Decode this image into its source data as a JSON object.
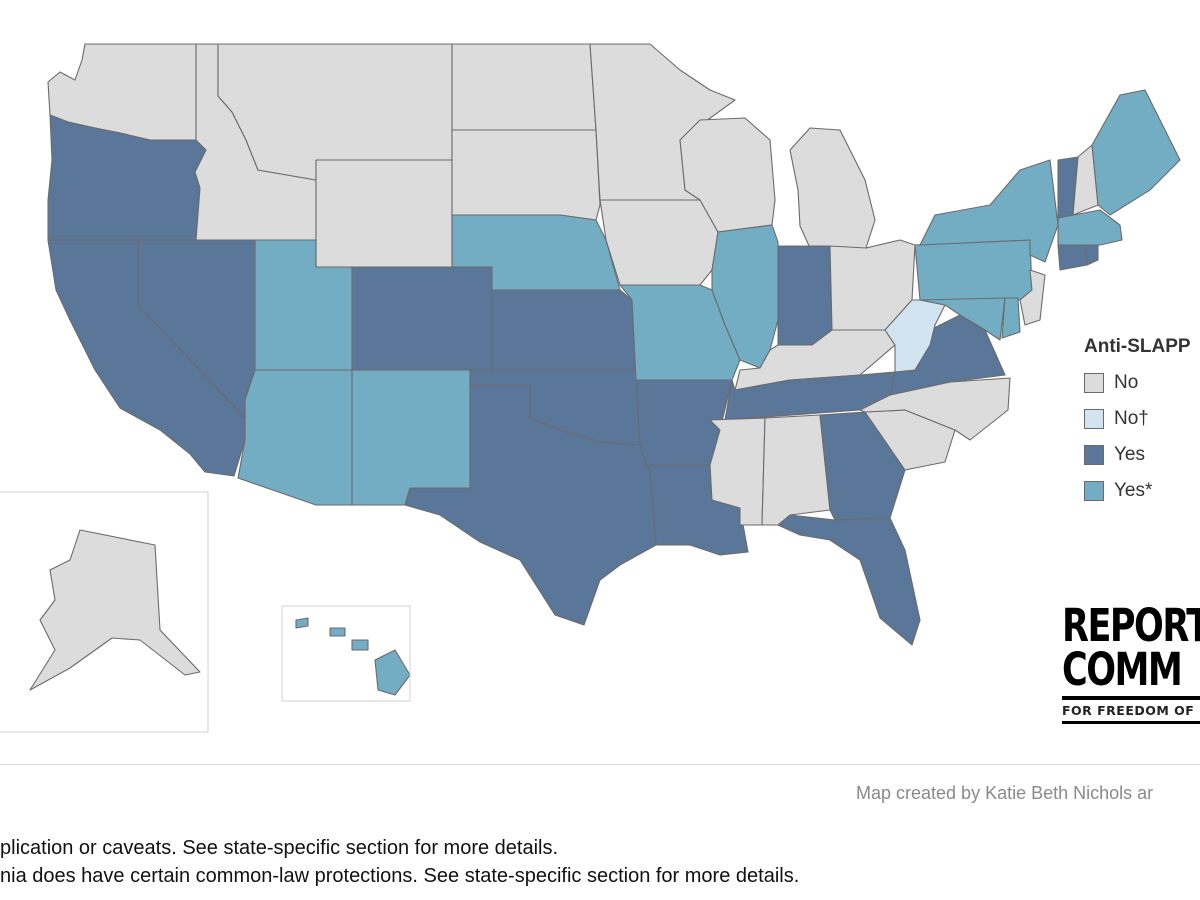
{
  "colors": {
    "no": "#dcdcdc",
    "no_dagger": "#d2e4f2",
    "yes": "#5a7699",
    "yes_star": "#72adc4",
    "stroke": "#6b6b6b"
  },
  "legend": {
    "title": "Anti-SLAPP",
    "items": [
      {
        "label": "No",
        "color": "#dcdcdc"
      },
      {
        "label": "No†",
        "color": "#d2e4f2"
      },
      {
        "label": "Yes",
        "color": "#5a7699"
      },
      {
        "label": "Yes*",
        "color": "#72adc4"
      }
    ]
  },
  "states": {
    "WA": "no",
    "OR": "yes",
    "CA": "yes",
    "NV": "yes",
    "ID": "no",
    "MT": "no",
    "WY": "no",
    "UT": "yes_star",
    "AZ": "yes_star",
    "CO": "yes",
    "NM": "yes_star",
    "ND": "no",
    "SD": "no",
    "NE": "yes_star",
    "KS": "yes",
    "OK": "yes",
    "TX": "yes",
    "MN": "no",
    "IA": "no",
    "MO": "yes_star",
    "AR": "yes",
    "LA": "yes",
    "WI": "no",
    "IL": "yes_star",
    "MI": "no",
    "IN": "yes",
    "OH": "no",
    "KY": "no",
    "TN": "yes",
    "MS": "no",
    "AL": "no",
    "GA": "yes",
    "FL": "yes",
    "SC": "no",
    "NC": "no",
    "VA": "yes",
    "WV": "no_dagger",
    "PA": "yes_star",
    "NY": "yes_star",
    "VT": "yes",
    "NH": "no",
    "ME": "yes_star",
    "MA": "yes_star",
    "CT": "yes",
    "RI": "yes",
    "NJ": "no",
    "DE": "yes_star",
    "MD": "yes_star",
    "AK": "no",
    "HI": "yes_star"
  },
  "logo": {
    "line1": "REPORT",
    "line2": "COMM",
    "tagline": "FOR FREEDOM OF"
  },
  "credit": "Map created by Katie Beth Nichols ar",
  "footnotes": [
    "plication or caveats. See state-specific section for more details.",
    "nia does have certain common-law protections. See state-specific section for more details."
  ]
}
